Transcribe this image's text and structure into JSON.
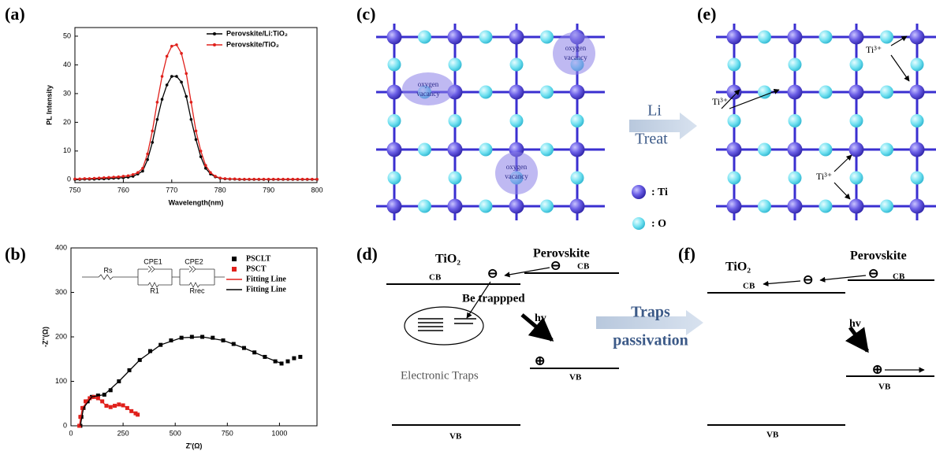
{
  "chart_data": [
    {
      "type": "line",
      "x_label": "Wavelength(nm)",
      "y_label": "PL Intensity",
      "x": [
        750,
        751,
        752,
        753,
        754,
        755,
        756,
        757,
        758,
        759,
        760,
        761,
        762,
        763,
        764,
        765,
        766,
        767,
        768,
        769,
        770,
        771,
        772,
        773,
        774,
        775,
        776,
        777,
        778,
        779,
        780,
        781,
        782,
        783,
        784,
        785,
        786,
        787,
        788,
        789,
        790,
        791,
        792,
        793,
        794,
        795,
        796,
        797,
        798,
        799,
        800
      ],
      "series": [
        {
          "name": "Perovskite/Li:TiO₂",
          "color": "#000000",
          "values": [
            0.1,
            0.1,
            0.2,
            0.2,
            0.2,
            0.3,
            0.3,
            0.4,
            0.5,
            0.6,
            0.7,
            0.9,
            1.2,
            2,
            3,
            7,
            13,
            21,
            28,
            33,
            36,
            36,
            34,
            29,
            21,
            14,
            8,
            4,
            2,
            1,
            0.5,
            0.3,
            0.2,
            0.2,
            0.1,
            0.1,
            0.1,
            0.1,
            0.1,
            0.1,
            0.1,
            0.1,
            0.1,
            0.1,
            0.1,
            0.1,
            0.1,
            0.1,
            0.1,
            0.1,
            0.1
          ]
        },
        {
          "name": "Perovskite/TiO₂",
          "color": "#e0201b",
          "values": [
            0.3,
            0.3,
            0.4,
            0.4,
            0.5,
            0.6,
            0.7,
            0.8,
            0.9,
            1.0,
            1.2,
            1.4,
            1.8,
            2.5,
            4,
            9,
            17,
            27,
            36,
            43,
            46.5,
            47,
            44,
            37,
            27,
            17,
            10,
            5,
            2.5,
            1.2,
            0.6,
            0.4,
            0.3,
            0.3,
            0.2,
            0.2,
            0.2,
            0.2,
            0.2,
            0.2,
            0.2,
            0.2,
            0.2,
            0.2,
            0.2,
            0.2,
            0.2,
            0.2,
            0.2,
            0.2,
            0.2
          ]
        }
      ],
      "xlim": [
        750,
        800
      ],
      "xticks": [
        750,
        760,
        770,
        780,
        790,
        800
      ],
      "ylim": [
        -1,
        53
      ],
      "yticks": [
        0,
        10,
        20,
        30,
        40,
        50
      ],
      "legend": "upper right"
    },
    {
      "type": "scatter",
      "x_label": "Z'(Ω)",
      "y_label": "-Z''(Ω)",
      "series": [
        {
          "name": "PSCLT",
          "color": "#000000",
          "style": "markers",
          "x": [
            45,
            50,
            60,
            80,
            100,
            130,
            160,
            190,
            230,
            280,
            330,
            380,
            430,
            480,
            530,
            580,
            630,
            680,
            730,
            780,
            830,
            880,
            930,
            980,
            1010,
            1040,
            1070,
            1100
          ],
          "values": [
            0,
            20,
            40,
            55,
            65,
            68,
            70,
            80,
            100,
            125,
            148,
            168,
            182,
            192,
            198,
            200,
            200,
            198,
            192,
            184,
            175,
            165,
            155,
            145,
            140,
            145,
            152,
            155
          ]
        },
        {
          "name": "PSCT",
          "color": "#e0201b",
          "style": "markers",
          "x": [
            40,
            45,
            55,
            70,
            90,
            110,
            130,
            150,
            170,
            190,
            210,
            230,
            250,
            270,
            290,
            310,
            320
          ],
          "values": [
            0,
            20,
            40,
            55,
            62,
            65,
            62,
            55,
            45,
            42,
            45,
            48,
            46,
            40,
            33,
            28,
            25
          ]
        },
        {
          "name": "Fitting Line",
          "color": "#e0201b",
          "style": "line",
          "x": [
            40,
            55,
            90,
            130,
            170,
            210,
            250,
            290,
            320
          ],
          "values": [
            0,
            40,
            62,
            62,
            45,
            45,
            46,
            33,
            25
          ]
        },
        {
          "name": "Fitting Line",
          "color": "#000000",
          "style": "line",
          "x": [
            45,
            60,
            100,
            160,
            230,
            330,
            430,
            530,
            630,
            730,
            830,
            930,
            1010
          ],
          "values": [
            0,
            40,
            65,
            70,
            100,
            148,
            182,
            198,
            200,
            192,
            175,
            155,
            140
          ]
        }
      ],
      "circuit_labels": [
        "Rs",
        "CPE1",
        "R1",
        "CPE2",
        "Rrec"
      ],
      "xlim": [
        0,
        1180
      ],
      "xticks": [
        0,
        250,
        500,
        750,
        1000
      ],
      "ylim": [
        0,
        400
      ],
      "yticks": [
        0,
        100,
        200,
        300,
        400
      ],
      "legend": "upper right"
    }
  ],
  "panel_labels": [
    "(a)",
    "(b)",
    "(c)",
    "(d)",
    "(e)",
    "(f)"
  ],
  "diagram_c": {
    "vacancies": [
      [
        "oxygen",
        "vacancy"
      ],
      [
        "oxygen",
        "vacancy"
      ],
      [
        "oxygen",
        "vacancy"
      ]
    ]
  },
  "treat_label": [
    "Li",
    "Treat"
  ],
  "atom_legend": [
    ": Ti",
    ": O"
  ],
  "diagram_e": {
    "ti_labels": [
      "Ti³⁺",
      "Ti³⁺",
      "Ti³⁺"
    ]
  },
  "diagram_d": {
    "tio2": "TiO₂",
    "perovskite": "Perovskite",
    "cb_left": "CB",
    "cb_right": "CB",
    "electrons": [
      "⊖",
      "⊖"
    ],
    "trapped": "Be trappped",
    "hv": "hv",
    "hole": "⊕",
    "traps": "Electronic Traps",
    "vb_right": "VB",
    "vb_bottom": "VB"
  },
  "passivation_label": [
    "Traps",
    "passivation"
  ],
  "diagram_f": {
    "tio2": "TiO₂",
    "perovskite": "Perovskite",
    "cb_left": "CB",
    "cb_right": "CB",
    "electrons": [
      "⊖",
      "⊖"
    ],
    "hv": "hv",
    "hole": "⊕",
    "vb_right": "VB",
    "vb_bottom": "VB"
  }
}
